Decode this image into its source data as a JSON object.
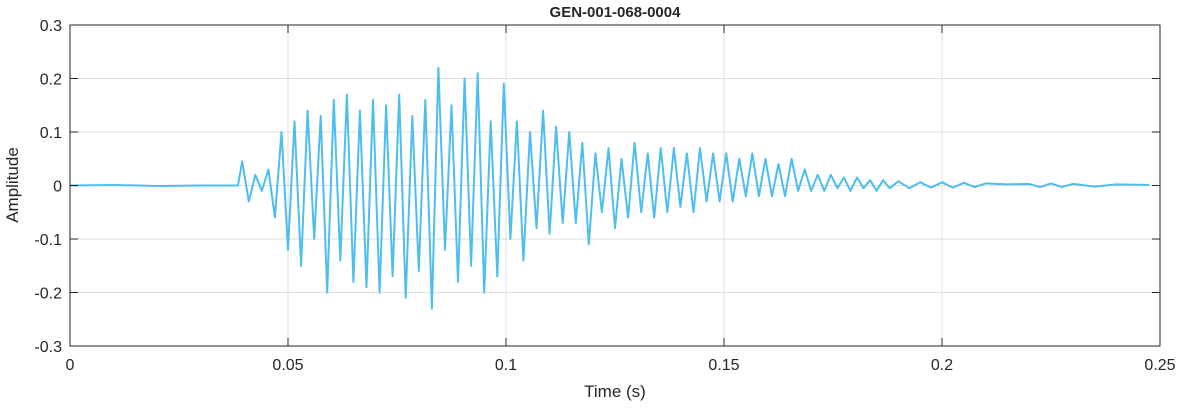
{
  "chart_data": {
    "type": "line",
    "title": "GEN-001-068-0004",
    "xlabel": "Time (s)",
    "ylabel": "Amplitude",
    "xlim": [
      0,
      0.25
    ],
    "ylim": [
      -0.3,
      0.3
    ],
    "xticks": [
      0,
      0.05,
      0.1,
      0.15,
      0.2,
      0.25
    ],
    "xtick_labels": [
      "0",
      "0.05",
      "0.1",
      "0.15",
      "0.2",
      "0.25"
    ],
    "yticks": [
      -0.3,
      -0.2,
      -0.1,
      0,
      0.1,
      0.2,
      0.3
    ],
    "ytick_labels": [
      "-0.3",
      "-0.2",
      "-0.1",
      "0",
      "0.1",
      "0.2",
      "0.3"
    ],
    "grid": true,
    "line_color": "#4DBEEE",
    "series": [
      {
        "x": [
          0,
          0.01,
          0.02,
          0.03,
          0.0385,
          0.0395,
          0.041,
          0.0425,
          0.044,
          0.0455,
          0.047,
          0.0485,
          0.05,
          0.0515,
          0.053,
          0.0545,
          0.056,
          0.0575,
          0.059,
          0.0605,
          0.062,
          0.0635,
          0.065,
          0.0665,
          0.068,
          0.0695,
          0.071,
          0.0725,
          0.074,
          0.0755,
          0.077,
          0.0785,
          0.08,
          0.0815,
          0.083,
          0.0845,
          0.086,
          0.0875,
          0.089,
          0.0905,
          0.092,
          0.0935,
          0.095,
          0.0965,
          0.098,
          0.0995,
          0.101,
          0.1025,
          0.104,
          0.1055,
          0.107,
          0.1085,
          0.11,
          0.1115,
          0.113,
          0.1145,
          0.116,
          0.1175,
          0.119,
          0.1205,
          0.122,
          0.1235,
          0.125,
          0.1265,
          0.128,
          0.1295,
          0.131,
          0.1325,
          0.134,
          0.1355,
          0.137,
          0.1385,
          0.14,
          0.1415,
          0.143,
          0.1445,
          0.146,
          0.1475,
          0.149,
          0.1505,
          0.152,
          0.1535,
          0.155,
          0.1565,
          0.158,
          0.1595,
          0.161,
          0.1625,
          0.164,
          0.1655,
          0.167,
          0.1685,
          0.17,
          0.1715,
          0.173,
          0.1745,
          0.176,
          0.1775,
          0.179,
          0.1805,
          0.182,
          0.1835,
          0.185,
          0.1865,
          0.188,
          0.19,
          0.1925,
          0.195,
          0.1975,
          0.2,
          0.2025,
          0.205,
          0.2075,
          0.21,
          0.215,
          0.22,
          0.2225,
          0.225,
          0.2275,
          0.23,
          0.235,
          0.24,
          0.2475
        ],
        "y": [
          0,
          0.001,
          -0.001,
          0,
          0,
          0.045,
          -0.03,
          0.02,
          -0.01,
          0.03,
          -0.06,
          0.1,
          -0.12,
          0.12,
          -0.15,
          0.14,
          -0.1,
          0.13,
          -0.2,
          0.16,
          -0.14,
          0.17,
          -0.18,
          0.14,
          -0.19,
          0.16,
          -0.2,
          0.15,
          -0.17,
          0.17,
          -0.21,
          0.13,
          -0.16,
          0.16,
          -0.23,
          0.22,
          -0.12,
          0.15,
          -0.18,
          0.2,
          -0.15,
          0.21,
          -0.2,
          0.12,
          -0.17,
          0.19,
          -0.1,
          0.12,
          -0.14,
          0.1,
          -0.08,
          0.14,
          -0.09,
          0.11,
          -0.07,
          0.1,
          -0.07,
          0.08,
          -0.11,
          0.06,
          -0.05,
          0.07,
          -0.08,
          0.05,
          -0.06,
          0.08,
          -0.05,
          0.06,
          -0.06,
          0.07,
          -0.05,
          0.07,
          -0.04,
          0.06,
          -0.05,
          0.07,
          -0.03,
          0.06,
          -0.03,
          0.06,
          -0.03,
          0.05,
          -0.02,
          0.06,
          -0.02,
          0.05,
          -0.02,
          0.04,
          -0.02,
          0.05,
          -0.01,
          0.03,
          -0.01,
          0.02,
          -0.01,
          0.02,
          -0.005,
          0.015,
          -0.01,
          0.015,
          -0.005,
          0.01,
          -0.01,
          0.01,
          -0.005,
          0.008,
          -0.005,
          0.006,
          -0.004,
          0.006,
          -0.004,
          0.005,
          -0.003,
          0.004,
          0.002,
          0.003,
          -0.003,
          0.004,
          -0.003,
          0.003,
          -0.002,
          0.002,
          0.001
        ]
      }
    ]
  }
}
